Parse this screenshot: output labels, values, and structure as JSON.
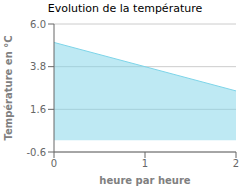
{
  "chart_data": {
    "type": "area",
    "title": "Evolution de la température",
    "xlabel": "heure par heure",
    "ylabel": "Température en °C",
    "x": [
      0,
      2
    ],
    "values": [
      5.05,
      2.55
    ],
    "color": "#7dd4e8",
    "xlim": [
      0,
      2
    ],
    "xticks": [
      0,
      1,
      2
    ],
    "ylim": [
      -0.6,
      6.0
    ],
    "yticks": [
      -0.6,
      1.6,
      3.8,
      {
        "value": 6.0,
        "label": "6.0"
      }
    ],
    "grid": true
  }
}
